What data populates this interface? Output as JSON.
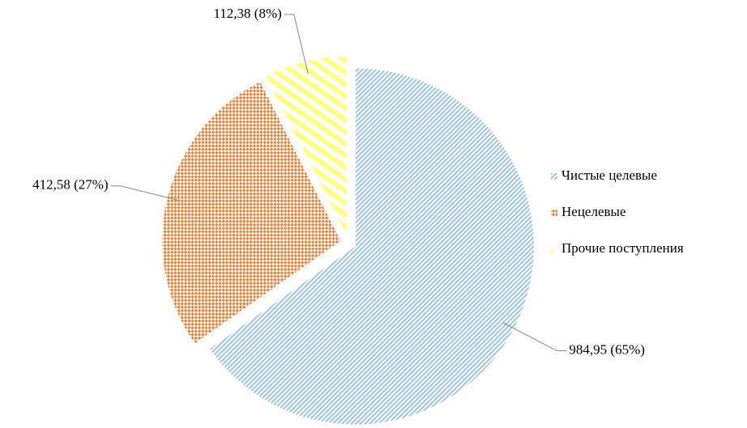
{
  "chart_data": {
    "type": "pie",
    "categories": [
      "Чистые целевые",
      "Нецелевые",
      "Прочие поступления"
    ],
    "values": [
      984.95,
      412.58,
      112.38
    ],
    "value_labels": [
      "984,95 (65%)",
      "412,58 (27%)",
      "112,38 (8%)"
    ],
    "colors": [
      "#9dc3e6",
      "#ed7d31",
      "#ffff80"
    ],
    "legend": "right"
  }
}
